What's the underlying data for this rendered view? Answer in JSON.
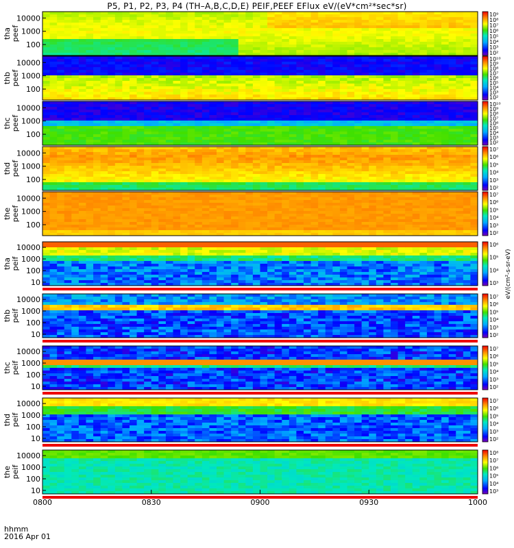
{
  "title": "P5, P1, P2, P3, P4 (TH–A,B,C,D,E) PEIF,PEEF EFlux eV/(eV*cm²*sec*sr)",
  "time_axis": {
    "label_line1": "hhmm",
    "label_line2": "2016 Apr 01",
    "ticks": [
      "0800",
      "0830",
      "0900",
      "0930",
      "1000"
    ],
    "range_minutes": [
      0,
      120
    ]
  },
  "colorbar_unit_label": "eV/(cm²-s-sr-eV)",
  "chart_data": {
    "type": "heatmap",
    "panels": [
      {
        "ylabel_line1": "tha",
        "ylabel_line2": "peef",
        "yticks": [
          "10000",
          "1000",
          "100"
        ],
        "yrange": [
          15,
          30000
        ],
        "colorbar_ticks": [
          "10⁹",
          "10⁸",
          "10⁷",
          "10⁶",
          "10⁵",
          "10⁴",
          "10³",
          "10²"
        ],
        "pattern": "electron_high"
      },
      {
        "ylabel_line1": "thb",
        "ylabel_line2": "peef",
        "yticks": [
          "10000",
          "1000",
          "100"
        ],
        "yrange": [
          15,
          30000
        ],
        "colorbar_ticks": [
          "10¹⁰",
          "10⁹",
          "10⁸",
          "10⁷",
          "10⁶",
          "10⁵",
          "10⁴",
          "10³",
          "10²"
        ],
        "pattern": "electron_b"
      },
      {
        "ylabel_line1": "thc",
        "ylabel_line2": "peef",
        "yticks": [
          "10000",
          "1000",
          "100"
        ],
        "yrange": [
          15,
          30000
        ],
        "colorbar_ticks": [
          "10¹⁰",
          "10⁹",
          "10⁸",
          "10⁷",
          "10⁶",
          "10⁵",
          "10⁴",
          "10³",
          "10²"
        ],
        "pattern": "electron_c"
      },
      {
        "ylabel_line1": "thd",
        "ylabel_line2": "peef",
        "yticks": [
          "10000",
          "1000",
          "100"
        ],
        "yrange": [
          15,
          30000
        ],
        "colorbar_ticks": [
          "10⁷",
          "10⁶",
          "10⁵",
          "10⁴",
          "10³",
          "10²"
        ],
        "pattern": "electron_d"
      },
      {
        "ylabel_line1": "the",
        "ylabel_line2": "peef",
        "yticks": [
          "10000",
          "1000",
          "100"
        ],
        "yrange": [
          15,
          30000
        ],
        "colorbar_ticks": [
          "10⁷",
          "10⁶",
          "10⁵",
          "10⁴",
          "10³",
          "10²"
        ],
        "pattern": "electron_e"
      },
      {
        "ylabel_line1": "tha",
        "ylabel_line2": "peif",
        "yticks": [
          "10000",
          "1000",
          "100",
          "10"
        ],
        "yrange": [
          5,
          30000
        ],
        "colorbar_ticks": [
          "10⁶",
          "10⁵",
          "10⁴",
          "10³"
        ],
        "pattern": "ion_a"
      },
      {
        "ylabel_line1": "thb",
        "ylabel_line2": "peif",
        "yticks": [
          "10000",
          "1000",
          "100",
          "10"
        ],
        "yrange": [
          5,
          30000
        ],
        "colorbar_ticks": [
          "10⁷",
          "10⁶",
          "10⁵",
          "10⁴",
          "10³",
          "10²"
        ],
        "pattern": "ion_b"
      },
      {
        "ylabel_line1": "thc",
        "ylabel_line2": "peif",
        "yticks": [
          "10000",
          "1000",
          "100",
          "10"
        ],
        "yrange": [
          5,
          30000
        ],
        "colorbar_ticks": [
          "10⁷",
          "10⁶",
          "10⁵",
          "10⁴",
          "10³",
          "10²"
        ],
        "pattern": "ion_c"
      },
      {
        "ylabel_line1": "thd",
        "ylabel_line2": "peif",
        "yticks": [
          "10000",
          "1000",
          "100",
          "10"
        ],
        "yrange": [
          5,
          30000
        ],
        "colorbar_ticks": [
          "10⁷",
          "10⁶",
          "10⁵",
          "10⁴",
          "10³",
          "10²"
        ],
        "pattern": "ion_d"
      },
      {
        "ylabel_line1": "the",
        "ylabel_line2": "peif",
        "yticks": [
          "10000",
          "1000",
          "100",
          "10"
        ],
        "yrange": [
          5,
          30000
        ],
        "colorbar_ticks": [
          "10⁸",
          "10⁷",
          "10⁶",
          "10⁵",
          "10⁴",
          "10³"
        ],
        "pattern": "ion_e"
      }
    ]
  }
}
